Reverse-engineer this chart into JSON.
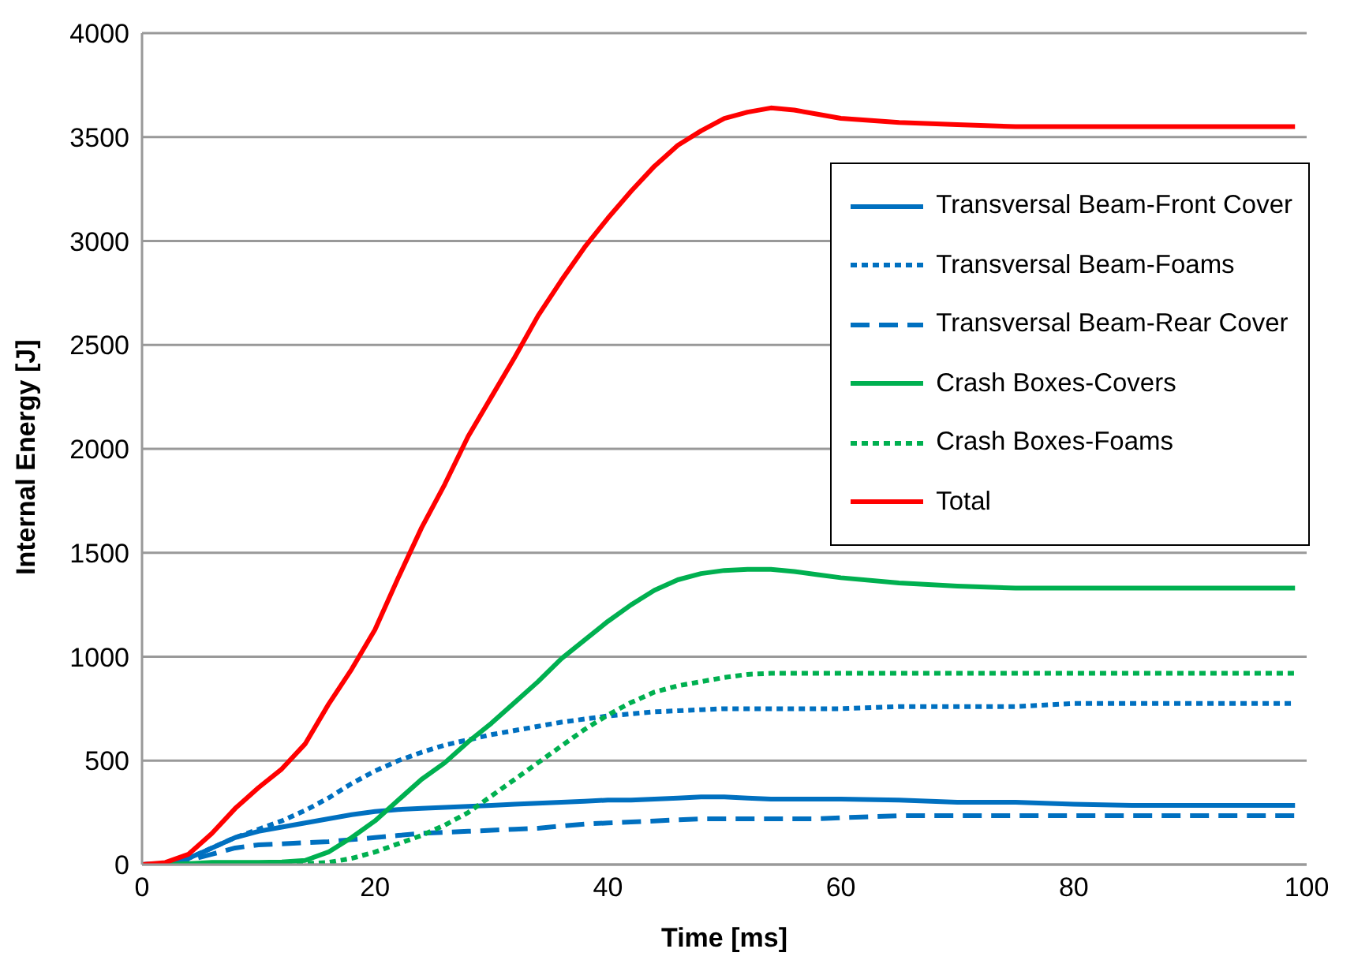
{
  "chart_data": {
    "type": "line",
    "xlabel": "Time [ms]",
    "ylabel": "Internal Energy [J]",
    "x": [
      0,
      2,
      4,
      6,
      8,
      10,
      12,
      14,
      16,
      18,
      20,
      22,
      24,
      26,
      28,
      30,
      32,
      34,
      36,
      38,
      40,
      42,
      44,
      46,
      48,
      50,
      52,
      54,
      56,
      58,
      60,
      65,
      70,
      75,
      80,
      85,
      90,
      95,
      99
    ],
    "series": [
      {
        "name": "Transversal Beam-Front Cover",
        "color": "#0070c0",
        "line_style": "solid",
        "values": [
          0,
          5,
          30,
          80,
          130,
          160,
          180,
          200,
          220,
          240,
          255,
          265,
          270,
          275,
          280,
          285,
          290,
          295,
          300,
          305,
          310,
          310,
          315,
          320,
          325,
          325,
          320,
          315,
          315,
          315,
          315,
          310,
          300,
          300,
          290,
          285,
          285,
          285,
          285
        ]
      },
      {
        "name": "Transversal Beam-Foams",
        "color": "#0070c0",
        "line_style": "dotted",
        "values": [
          0,
          5,
          30,
          80,
          130,
          170,
          210,
          260,
          320,
          390,
          450,
          500,
          540,
          575,
          600,
          625,
          645,
          665,
          685,
          700,
          715,
          725,
          735,
          740,
          745,
          750,
          750,
          750,
          750,
          750,
          750,
          760,
          760,
          760,
          775,
          775,
          775,
          775,
          775
        ]
      },
      {
        "name": "Transversal Beam-Rear Cover",
        "color": "#0070c0",
        "line_style": "dashed",
        "values": [
          0,
          5,
          20,
          50,
          80,
          95,
          100,
          105,
          110,
          120,
          130,
          140,
          150,
          155,
          160,
          165,
          170,
          175,
          185,
          195,
          200,
          205,
          210,
          215,
          220,
          220,
          220,
          220,
          220,
          220,
          225,
          235,
          235,
          235,
          235,
          235,
          235,
          235,
          235
        ]
      },
      {
        "name": "Crash Boxes-Covers",
        "color": "#00b050",
        "line_style": "solid",
        "values": [
          0,
          0,
          5,
          10,
          10,
          10,
          12,
          20,
          60,
          130,
          210,
          310,
          410,
          490,
          590,
          680,
          780,
          880,
          990,
          1080,
          1170,
          1250,
          1320,
          1370,
          1400,
          1415,
          1420,
          1420,
          1410,
          1395,
          1380,
          1355,
          1340,
          1330,
          1330,
          1330,
          1330,
          1330,
          1330
        ]
      },
      {
        "name": "Crash Boxes-Foams",
        "color": "#00b050",
        "line_style": "dotted",
        "values": [
          0,
          0,
          0,
          0,
          2,
          3,
          4,
          5,
          10,
          30,
          60,
          100,
          140,
          190,
          250,
          330,
          410,
          490,
          570,
          650,
          720,
          780,
          830,
          860,
          880,
          900,
          915,
          920,
          920,
          920,
          920,
          920,
          920,
          920,
          920,
          920,
          920,
          920,
          920
        ]
      },
      {
        "name": "Total",
        "color": "#ff0000",
        "line_style": "solid",
        "values": [
          0,
          10,
          50,
          150,
          270,
          370,
          460,
          580,
          770,
          940,
          1130,
          1380,
          1620,
          1830,
          2060,
          2250,
          2440,
          2640,
          2810,
          2970,
          3110,
          3240,
          3360,
          3460,
          3530,
          3590,
          3620,
          3640,
          3630,
          3610,
          3590,
          3570,
          3560,
          3550,
          3550,
          3550,
          3550,
          3550,
          3550
        ]
      }
    ],
    "xlim": [
      0,
      100
    ],
    "xticks": [
      0,
      20,
      40,
      60,
      80,
      100
    ],
    "ylim": [
      0,
      4000
    ],
    "yticks": [
      0,
      500,
      1000,
      1500,
      2000,
      2500,
      3000,
      3500,
      4000
    ],
    "grid": "y",
    "legend": "top right",
    "marker": "none"
  }
}
